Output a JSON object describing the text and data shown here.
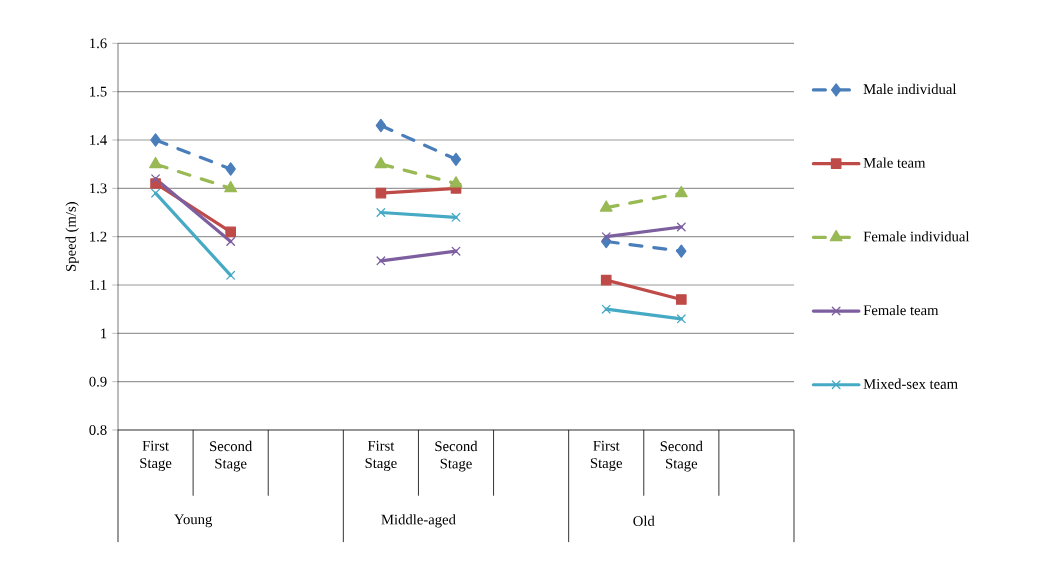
{
  "chart_data": {
    "type": "line",
    "ylabel": "Speed (m/s)",
    "categories": [
      "First Stage",
      "Second Stage",
      null,
      "First Stage",
      "Second Stage",
      null,
      "First Stage",
      "Second Stage",
      null
    ],
    "annotations": [
      "Young",
      "Middle-aged",
      "Old"
    ],
    "series": [
      {
        "name": "Male individual",
        "color": "#4a7ebb",
        "marker": "diamond",
        "line_style": "dashed",
        "values": [
          1.4,
          1.34,
          null,
          1.43,
          1.36,
          null,
          1.19,
          1.17,
          null
        ]
      },
      {
        "name": "Male team",
        "color": "#be4b48",
        "marker": "square",
        "line_style": "solid",
        "values": [
          1.31,
          1.21,
          null,
          1.29,
          1.3,
          null,
          1.11,
          1.07,
          null
        ]
      },
      {
        "name": "Female individual",
        "color": "#98b954",
        "marker": "triangle",
        "line_style": "dashed",
        "values": [
          1.35,
          1.3,
          null,
          1.35,
          1.31,
          null,
          1.26,
          1.29,
          null
        ]
      },
      {
        "name": "Female team",
        "color": "#7d5fa0",
        "marker": "cross",
        "line_style": "solid",
        "values": [
          1.32,
          1.19,
          null,
          1.15,
          1.17,
          null,
          1.2,
          1.22,
          null
        ]
      },
      {
        "name": "Mixed-sex team",
        "color": "#46aac5",
        "marker": "cross",
        "line_style": "solid",
        "values": [
          1.29,
          1.12,
          null,
          1.25,
          1.24,
          null,
          1.05,
          1.03,
          null
        ]
      }
    ],
    "ylim": [
      0.8,
      1.6
    ],
    "yticks": [
      0.8,
      0.9,
      1,
      1.1,
      1.2,
      1.3,
      1.4,
      1.5,
      1.6
    ],
    "grid": "y",
    "legend": "right"
  }
}
